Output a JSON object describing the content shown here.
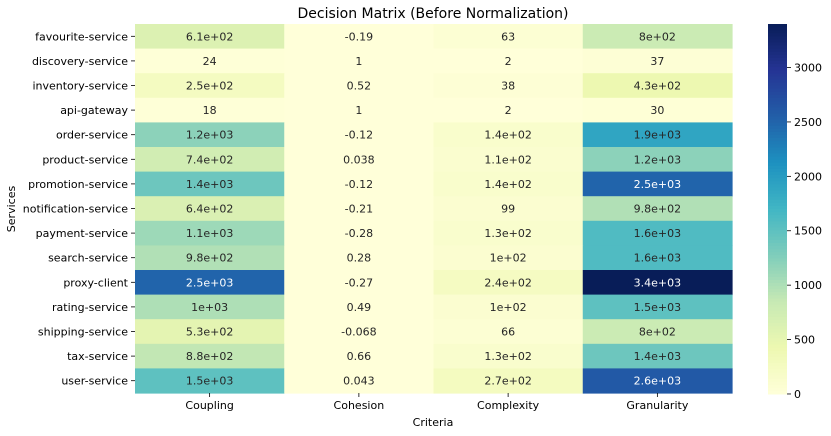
{
  "chart_data": {
    "type": "heatmap",
    "title": "Decision Matrix (Before Normalization)",
    "xlabel": "Criteria",
    "ylabel": "Services",
    "x_categories": [
      "Coupling",
      "Cohesion",
      "Complexity",
      "Granularity"
    ],
    "y_categories": [
      "favourite-service",
      "discovery-service",
      "inventory-service",
      "api-gateway",
      "order-service",
      "product-service",
      "promotion-service",
      "notification-service",
      "payment-service",
      "search-service",
      "proxy-client",
      "rating-service",
      "shipping-service",
      "tax-service",
      "user-service"
    ],
    "values": [
      [
        610,
        -0.19,
        63,
        800
      ],
      [
        24,
        1,
        2,
        37
      ],
      [
        250,
        0.52,
        38,
        430
      ],
      [
        18,
        1,
        2,
        30
      ],
      [
        1200,
        -0.12,
        140,
        1900
      ],
      [
        740,
        0.038,
        110,
        1200
      ],
      [
        1400,
        -0.12,
        140,
        2500
      ],
      [
        640,
        -0.21,
        99,
        980
      ],
      [
        1100,
        -0.28,
        130,
        1600
      ],
      [
        980,
        0.28,
        100,
        1600
      ],
      [
        2500,
        -0.27,
        240,
        3400
      ],
      [
        1000,
        0.49,
        100,
        1500
      ],
      [
        530,
        -0.068,
        66,
        800
      ],
      [
        880,
        0.66,
        130,
        1400
      ],
      [
        1500,
        0.043,
        270,
        2600
      ]
    ],
    "annotations": [
      [
        "6.1e+02",
        "-0.19",
        "63",
        "8e+02"
      ],
      [
        "24",
        "1",
        "2",
        "37"
      ],
      [
        "2.5e+02",
        "0.52",
        "38",
        "4.3e+02"
      ],
      [
        "18",
        "1",
        "2",
        "30"
      ],
      [
        "1.2e+03",
        "-0.12",
        "1.4e+02",
        "1.9e+03"
      ],
      [
        "7.4e+02",
        "0.038",
        "1.1e+02",
        "1.2e+03"
      ],
      [
        "1.4e+03",
        "-0.12",
        "1.4e+02",
        "2.5e+03"
      ],
      [
        "6.4e+02",
        "-0.21",
        "99",
        "9.8e+02"
      ],
      [
        "1.1e+03",
        "-0.28",
        "1.3e+02",
        "1.6e+03"
      ],
      [
        "9.8e+02",
        "0.28",
        "1e+02",
        "1.6e+03"
      ],
      [
        "2.5e+03",
        "-0.27",
        "2.4e+02",
        "3.4e+03"
      ],
      [
        "1e+03",
        "0.49",
        "1e+02",
        "1.5e+03"
      ],
      [
        "5.3e+02",
        "-0.068",
        "66",
        "8e+02"
      ],
      [
        "8.8e+02",
        "0.66",
        "1.3e+02",
        "1.4e+03"
      ],
      [
        "1.5e+03",
        "0.043",
        "2.7e+02",
        "2.6e+03"
      ]
    ],
    "colormap": "YlGnBu",
    "vmin": -0.28,
    "vmax": 3400,
    "colorbar_ticks": [
      0,
      500,
      1000,
      1500,
      2000,
      2500,
      3000
    ],
    "colorbar_tick_labels": [
      "0",
      "500",
      "1000",
      "1500",
      "2000",
      "2500",
      "3000"
    ],
    "grid": false
  }
}
